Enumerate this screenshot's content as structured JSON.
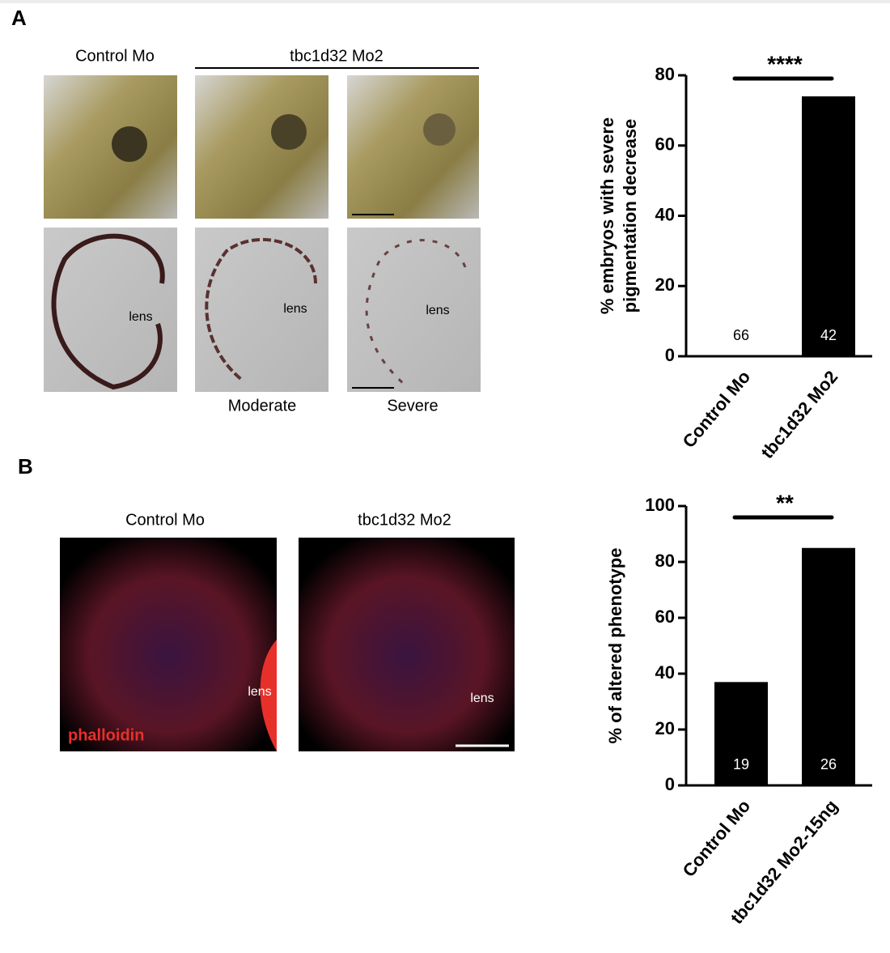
{
  "figure": {
    "panel_a": {
      "label": "A",
      "col_control": "Control Mo",
      "col_morphant": "tbc1d32 Mo2",
      "lens_labels": [
        "lens",
        "lens",
        "lens"
      ],
      "row_labels": [
        "Moderate",
        "Severe"
      ]
    },
    "panel_b": {
      "label": "B",
      "col_control": "Control Mo",
      "col_morphant": "tbc1d32 Mo2",
      "lens_labels": [
        "lens",
        "lens"
      ],
      "stain": "phalloidin"
    }
  },
  "chart_data": [
    {
      "type": "bar",
      "ylabel": [
        "% embryos with severe",
        "pigmentation decrease"
      ],
      "categories": [
        "Control Mo",
        "tbc1d32 Mo2"
      ],
      "values": [
        0,
        74
      ],
      "n_labels": [
        "66",
        "42"
      ],
      "color": "#000000",
      "significance": "****",
      "ylim": [
        0,
        80
      ],
      "yticks": [
        0,
        20,
        40,
        60,
        80
      ]
    },
    {
      "type": "bar",
      "ylabel": [
        "% of altered phenotype"
      ],
      "categories": [
        "Control Mo",
        "tbc1d32 Mo2-15ng"
      ],
      "values": [
        37,
        85
      ],
      "n_labels": [
        "19",
        "26"
      ],
      "color": "#000000",
      "significance": "**",
      "ylim": [
        0,
        100
      ],
      "yticks": [
        0,
        20,
        40,
        60,
        80,
        100
      ]
    }
  ]
}
